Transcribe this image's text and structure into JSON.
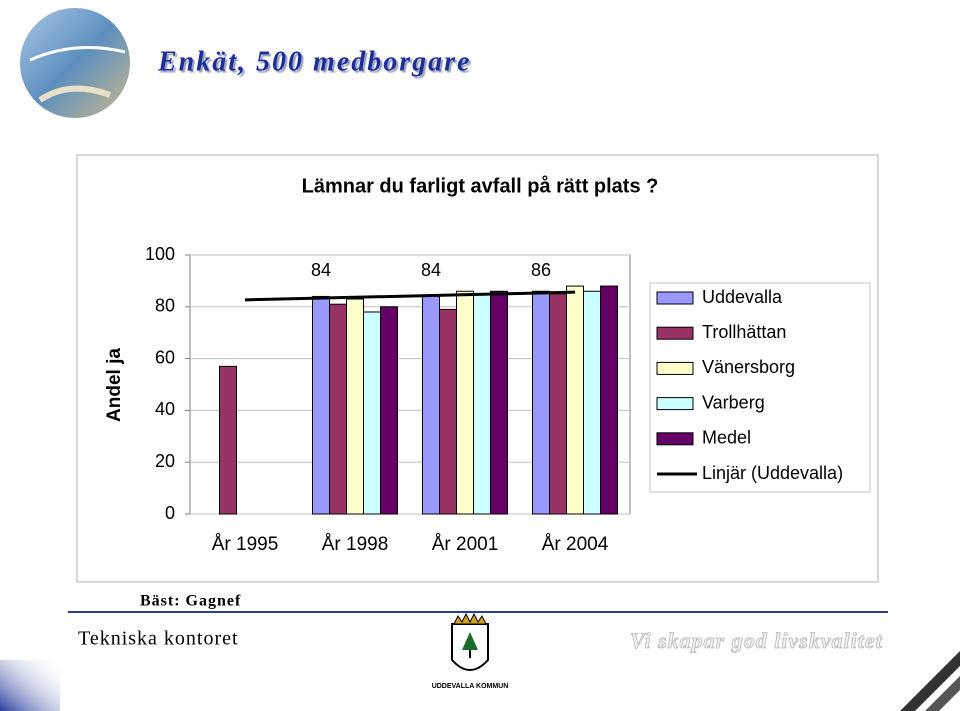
{
  "slide": {
    "title": "Enkät, 500 medborgare",
    "note": "Bäst: Gagnef",
    "footer_left": "Tekniska kontoret",
    "footer_right": "Vi skapar god livskvalitet",
    "logo_text": "UDDEVALLA KOMMUN"
  },
  "chart_data": {
    "type": "bar",
    "title": "Lämnar du farligt avfall på rätt plats ?",
    "y_label": "Andel ja",
    "categories": [
      "År 1995",
      "År 1998",
      "År 2001",
      "År 2004"
    ],
    "series": [
      {
        "name": "Uddevalla",
        "color": "#9999ff",
        "values": [
          null,
          84,
          84,
          86
        ],
        "show_labels": true
      },
      {
        "name": "Trollhättan",
        "color": "#993366",
        "values": [
          57,
          81,
          79,
          85
        ]
      },
      {
        "name": "Vänersborg",
        "color": "#ffffcc",
        "values": [
          null,
          83,
          86,
          88
        ]
      },
      {
        "name": "Varberg",
        "color": "#ccffff",
        "values": [
          null,
          78,
          85,
          86
        ]
      },
      {
        "name": "Medel",
        "color": "#660066",
        "values": [
          null,
          80,
          86,
          88
        ]
      }
    ],
    "trendline": {
      "name": "Linjär (Uddevalla)",
      "color": "#000000"
    },
    "ylim": [
      0,
      100
    ],
    "yticks": [
      0,
      20,
      40,
      60,
      80,
      100
    ],
    "grid": true
  }
}
